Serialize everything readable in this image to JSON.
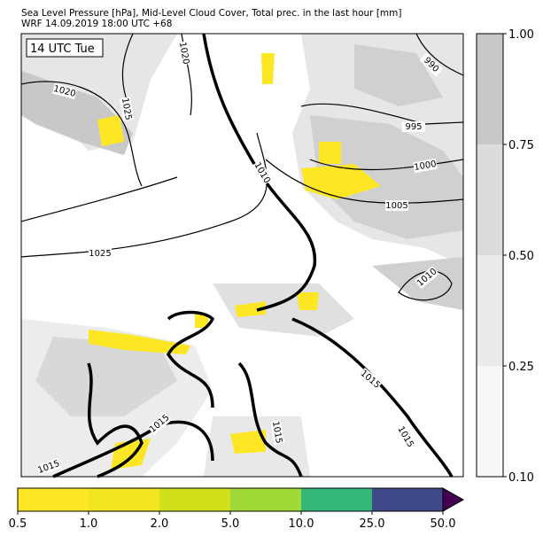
{
  "header": {
    "title": "Sea Level Pressure [hPa], Mid-Level Cloud Cover, Total prec. in the last hour [mm]",
    "subtitle": "WRF 14.09.2019 18:00 UTC +68"
  },
  "map": {
    "time_label": "14 UTC Tue",
    "isobar_labels": [
      "1020",
      "1020",
      "1025",
      "990",
      "995",
      "1000",
      "1005",
      "1010",
      "1025",
      "1010",
      "1015",
      "1015",
      "1015",
      "1015",
      "1015"
    ]
  },
  "cloud_colorbar": {
    "ticks": [
      "0.10",
      "0.25",
      "0.50",
      "0.75",
      "1.00"
    ],
    "colors": [
      "#f7f7f7",
      "#ebebeb",
      "#dcdcdc",
      "#c8c8c8"
    ]
  },
  "precip_colorbar": {
    "ticks": [
      "0.5",
      "1.0",
      "2.0",
      "5.0",
      "10.0",
      "25.0",
      "50.0"
    ],
    "colors": [
      "#fde725",
      "#f1e51d",
      "#d0e11c",
      "#a0da39",
      "#35b779",
      "#3e4a89"
    ],
    "extend_color": "#440154"
  }
}
